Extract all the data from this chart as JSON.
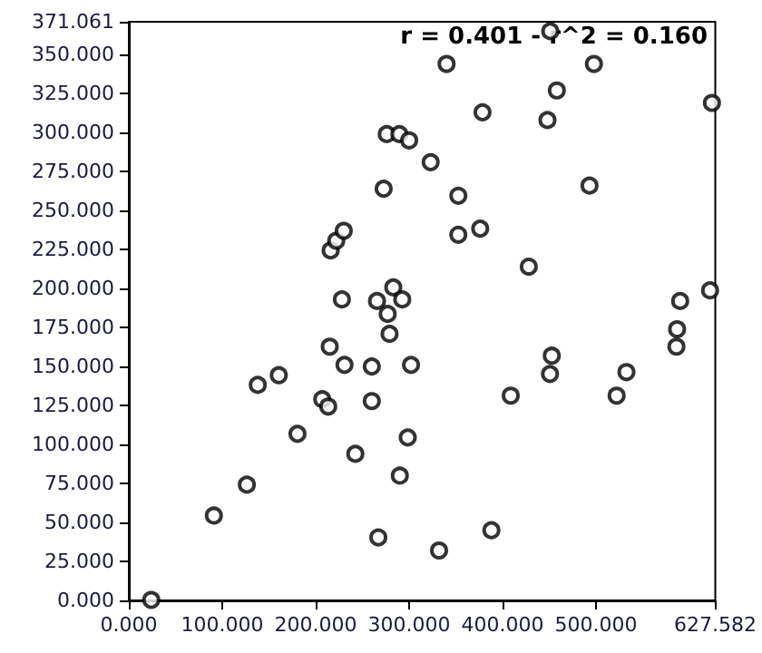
{
  "chart_data": {
    "type": "scatter",
    "annotations": [
      "r = 0.401 - r^2 = 0.160"
    ],
    "x": [
      24,
      91,
      126.3,
      138,
      160.5,
      180.5,
      207,
      213.4,
      215,
      216,
      222,
      228,
      230,
      230.8,
      242.4,
      260,
      260,
      265.6,
      267,
      272.7,
      276,
      277,
      279,
      283,
      289.5,
      290,
      292.6,
      298.5,
      300,
      302,
      323,
      332,
      340,
      352.6,
      352.6,
      376,
      378.5,
      388,
      408.7,
      428,
      448,
      450.7,
      451,
      452.6,
      458,
      493,
      497.7,
      522,
      532.5,
      586,
      586.7,
      590,
      622,
      624
    ],
    "values": [
      0.3,
      54.4,
      74.2,
      138.2,
      144.4,
      106.8,
      129,
      124.3,
      162.7,
      224.4,
      230.6,
      193,
      237,
      151,
      94,
      150,
      127.8,
      192,
      40.4,
      264,
      299,
      183.7,
      170.9,
      200.7,
      299,
      80,
      193,
      104.5,
      295,
      151,
      281,
      32,
      344,
      259.5,
      234.5,
      238.4,
      313,
      45,
      131.3,
      214,
      308,
      145.2,
      365,
      156.9,
      327,
      266,
      344,
      131.3,
      146.4,
      162.7,
      173.9,
      192,
      198.8,
      319
    ],
    "color": "#000000",
    "marker": "circle",
    "grid": false,
    "xlim": [
      0,
      627.582
    ],
    "xticks": [
      {
        "value": 0,
        "label": "0.000"
      },
      {
        "value": 100,
        "label": "100.000"
      },
      {
        "value": 200,
        "label": "200.000"
      },
      {
        "value": 300,
        "label": "300.000"
      },
      {
        "value": 400,
        "label": "400.000"
      },
      {
        "value": 500,
        "label": "500.000"
      },
      627.582
    ],
    "ylim": [
      0,
      371.061
    ],
    "yticks": [
      {
        "value": 0,
        "label": "0.000"
      },
      {
        "value": 25,
        "label": "25.000"
      },
      {
        "value": 50,
        "label": "50.000"
      },
      {
        "value": 75,
        "label": "75.000"
      },
      {
        "value": 100,
        "label": "100.000"
      },
      {
        "value": 125,
        "label": "125.000"
      },
      {
        "value": 150,
        "label": "150.000"
      },
      {
        "value": 175,
        "label": "175.000"
      },
      {
        "value": 200,
        "label": "200.000"
      },
      {
        "value": 225,
        "label": "225.000"
      },
      {
        "value": 250,
        "label": "250.000"
      },
      {
        "value": 275,
        "label": "275.000"
      },
      {
        "value": 300,
        "label": "300.000"
      },
      {
        "value": 325,
        "label": "325.000"
      },
      {
        "value": 350,
        "label": "350.000"
      },
      371.061
    ]
  }
}
